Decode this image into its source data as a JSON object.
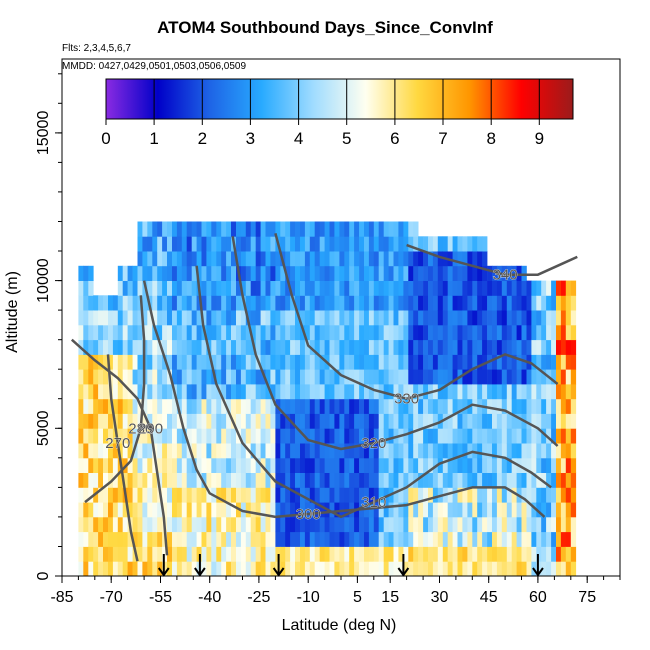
{
  "chart_data": {
    "type": "heatmap",
    "title": "ATOM4 Southbound Days_Since_ConvInf",
    "subtitle_flights": "Flts: 2,3,4,5,6,7",
    "subtitle_dates": "MMDD: 0427,0429,0501,0503,0506,0509",
    "xlabel": "Latitude (deg N)",
    "ylabel": "Altitude (m)",
    "xlim": [
      -85,
      85
    ],
    "ylim": [
      0,
      17500
    ],
    "x_ticks": [
      -85,
      -70,
      -55,
      -40,
      -25,
      -10,
      5,
      15,
      30,
      45,
      60,
      75
    ],
    "y_ticks": [
      0,
      5000,
      10000,
      15000
    ],
    "colorbar": {
      "ticks": [
        0,
        1,
        2,
        3,
        4,
        5,
        6,
        7,
        8,
        9
      ],
      "range": [
        0,
        9.7
      ],
      "colors": [
        "#8a2be2",
        "#0000c8",
        "#1e64e6",
        "#28aaff",
        "#a0dcff",
        "#fffff0",
        "#ffd840",
        "#ff9600",
        "#ff0000",
        "#9b1b1b"
      ]
    },
    "profile_latitudes": [
      -54,
      -43,
      -19,
      19,
      60
    ],
    "contours": [
      {
        "label": "270",
        "points": [
          [
            -62,
            500
          ],
          [
            -64,
            1500
          ],
          [
            -66,
            3000
          ],
          [
            -68,
            4500
          ],
          [
            -70,
            6000
          ],
          [
            -71,
            7500
          ]
        ]
      },
      {
        "label": "280",
        "points": [
          [
            -78,
            2500
          ],
          [
            -70,
            3200
          ],
          [
            -64,
            3900
          ],
          [
            -61,
            5000
          ],
          [
            -60,
            6500
          ],
          [
            -60,
            8000
          ],
          [
            -61,
            9500
          ]
        ]
      },
      {
        "label": "290",
        "points": [
          [
            -82,
            8000
          ],
          [
            -75,
            7300
          ],
          [
            -68,
            6700
          ],
          [
            -62,
            6000
          ],
          [
            -58,
            5000
          ],
          [
            -56,
            3500
          ],
          [
            -54,
            2000
          ],
          [
            -53,
            700
          ]
        ]
      },
      {
        "label": "300",
        "points": [
          [
            -60,
            10000
          ],
          [
            -57,
            8500
          ],
          [
            -52,
            6800
          ],
          [
            -48,
            5000
          ],
          [
            -44,
            3600
          ],
          [
            -40,
            2800
          ],
          [
            -30,
            2200
          ],
          [
            -20,
            2000
          ],
          [
            -10,
            2100
          ],
          [
            0,
            2200
          ],
          [
            10,
            2300
          ],
          [
            20,
            2400
          ],
          [
            30,
            2700
          ],
          [
            40,
            3000
          ],
          [
            50,
            3000
          ],
          [
            56,
            2600
          ],
          [
            62,
            2000
          ]
        ]
      },
      {
        "label": "310",
        "points": [
          [
            -44,
            10500
          ],
          [
            -42,
            8500
          ],
          [
            -38,
            6500
          ],
          [
            -30,
            4500
          ],
          [
            -20,
            3200
          ],
          [
            -10,
            2600
          ],
          [
            0,
            2000
          ],
          [
            10,
            2500
          ],
          [
            20,
            3000
          ],
          [
            30,
            3800
          ],
          [
            40,
            4200
          ],
          [
            50,
            4000
          ],
          [
            58,
            3500
          ],
          [
            64,
            3000
          ]
        ]
      },
      {
        "label": "320",
        "points": [
          [
            -33,
            11500
          ],
          [
            -30,
            9500
          ],
          [
            -26,
            7500
          ],
          [
            -20,
            5800
          ],
          [
            -10,
            4600
          ],
          [
            0,
            4300
          ],
          [
            10,
            4500
          ],
          [
            20,
            4800
          ],
          [
            30,
            5200
          ],
          [
            40,
            5800
          ],
          [
            50,
            5600
          ],
          [
            60,
            5000
          ],
          [
            66,
            4400
          ]
        ]
      },
      {
        "label": "330",
        "points": [
          [
            -20,
            11600
          ],
          [
            -15,
            9500
          ],
          [
            -10,
            7800
          ],
          [
            0,
            6800
          ],
          [
            10,
            6300
          ],
          [
            20,
            6000
          ],
          [
            30,
            6300
          ],
          [
            40,
            7000
          ],
          [
            50,
            7500
          ],
          [
            58,
            7200
          ],
          [
            66,
            6500
          ]
        ]
      },
      {
        "label": "340",
        "points": [
          [
            20,
            11200
          ],
          [
            30,
            10800
          ],
          [
            40,
            10500
          ],
          [
            50,
            10200
          ],
          [
            60,
            10200
          ],
          [
            68,
            10600
          ],
          [
            72,
            10800
          ]
        ]
      }
    ]
  }
}
